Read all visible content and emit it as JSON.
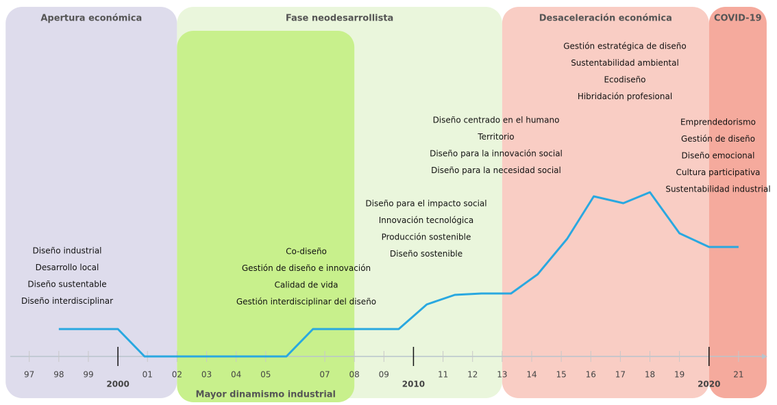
{
  "chart_data": {
    "type": "line",
    "periods": [
      {
        "name": "Apertura económica",
        "start": 1996.2,
        "end": 2002,
        "color": "#dedcec"
      },
      {
        "name": "Fase neodesarrollista",
        "start": 2002,
        "end": 2013,
        "color": "#eaf6dc"
      },
      {
        "name": "Mayor dinamismo industrial",
        "start": 2002,
        "end": 2008,
        "color": "#c8f08c"
      },
      {
        "name": "Desaceleración económica",
        "start": 2013,
        "end": 2020,
        "color": "#f9cdc4"
      },
      {
        "name": "COVID-19",
        "start": 2020,
        "end": 2021.95,
        "color": "#f5aa9d"
      }
    ],
    "term_groups": [
      [
        "Diseño industrial",
        "Desarrollo local",
        "Diseño sustentable",
        "Diseño interdisciplinar"
      ],
      [
        "Co-diseño",
        "Gestión de diseño e innovación",
        "Calidad de vida",
        "Gestión interdisciplinar del diseño"
      ],
      [
        "Diseño para el impacto social",
        "Innovación tecnológica",
        "Producción sostenible",
        "Diseño sostenible"
      ],
      [
        "Diseño centrado en el humano",
        "Territorio",
        "Diseño para la innovación social",
        "Diseño para la necesidad social"
      ],
      [
        "Gestión estratégica de diseño",
        "Sustentabilidad ambiental",
        "Ecodiseño",
        "Hibridación profesional"
      ],
      [
        "Emprendedorismo",
        "Gestión de diseño",
        "Diseño emocional",
        "Cultura participativa",
        "Sustentabilidad industrial"
      ]
    ],
    "series": [
      {
        "color": "#29a8e0",
        "x": [
          1998,
          2000,
          2000.9,
          2005.7,
          2006.6,
          2009.5,
          2010.45,
          2011.4,
          2012.3,
          2013.3,
          2014.2,
          2015.2,
          2016.1,
          2017.1,
          2018,
          2019,
          2020,
          2021
        ],
        "values": [
          10,
          10,
          0,
          0,
          10,
          10,
          19,
          22.5,
          23,
          23,
          30,
          43,
          58.5,
          56,
          60,
          45,
          40,
          40
        ]
      }
    ],
    "xlim": [
      1996.01,
      2022.3
    ],
    "ylim": [
      0,
      125
    ],
    "xticks": [
      {
        "value": 1997,
        "label": "97"
      },
      {
        "value": 1998,
        "label": "98"
      },
      {
        "value": 1999,
        "label": "99"
      },
      2000,
      {
        "value": 2001,
        "label": "01"
      },
      {
        "value": 2002,
        "label": "02"
      },
      {
        "value": 2003,
        "label": "03"
      },
      {
        "value": 2004,
        "label": "04"
      },
      {
        "value": 2005,
        "label": "05"
      },
      {
        "value": 2007,
        "label": "07"
      },
      {
        "value": 2008,
        "label": "08"
      },
      {
        "value": 2009,
        "label": "09"
      },
      2010,
      {
        "value": 2011,
        "label": "11"
      },
      {
        "value": 2012,
        "label": "12"
      },
      {
        "value": 2013,
        "label": "13"
      },
      {
        "value": 2014,
        "label": "14"
      },
      {
        "value": 2015,
        "label": "15"
      },
      {
        "value": 2016,
        "label": "16"
      },
      {
        "value": 2017,
        "label": "17"
      },
      {
        "value": 2018,
        "label": "18"
      },
      {
        "value": 2019,
        "label": "19"
      },
      2020,
      {
        "value": 2021,
        "label": "21"
      }
    ]
  }
}
